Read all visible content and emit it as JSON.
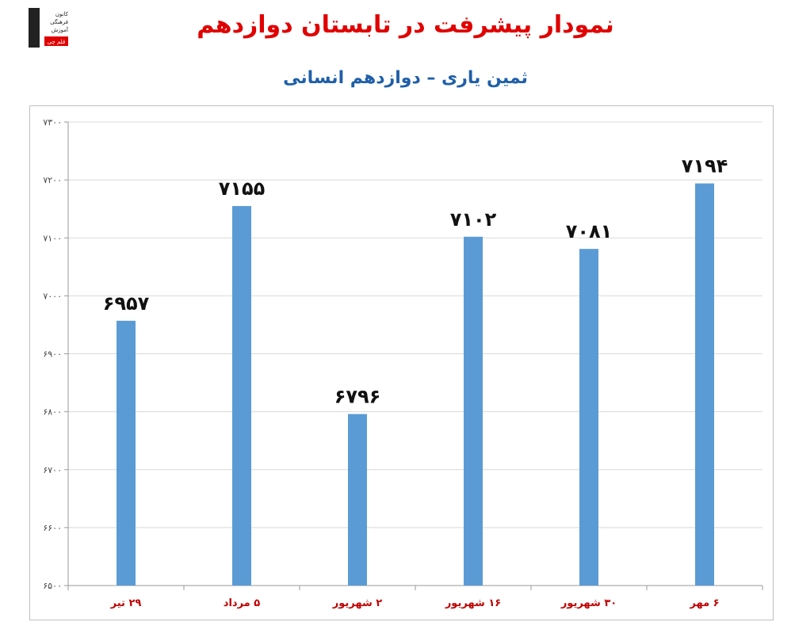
{
  "logo": {
    "lines": [
      "کانون",
      "فرهنگی",
      "آموزش"
    ],
    "badge": "قلم چی"
  },
  "chart_data": {
    "type": "bar",
    "title": "نمودار پیشرفت در تابستان دوازدهم",
    "subtitle": "ثمین یاری – دوازدهم انسانی",
    "categories": [
      "۲۹ تیر",
      "۵ مرداد",
      "۲ شهریور",
      "۱۶ شهریور",
      "۳۰ شهریور",
      "۶ مهر"
    ],
    "values": [
      6957,
      7155,
      6796,
      7102,
      7081,
      7194
    ],
    "data_labels": [
      "۶۹۵۷",
      "۷۱۵۵",
      "۶۷۹۶",
      "۷۱۰۲",
      "۷۰۸۱",
      "۷۱۹۴"
    ],
    "y_ticks": [
      6500,
      6600,
      6700,
      6800,
      6900,
      7000,
      7100,
      7200,
      7300
    ],
    "y_tick_labels": [
      "۶۵۰۰",
      "۶۶۰۰",
      "۶۷۰۰",
      "۶۸۰۰",
      "۶۹۰۰",
      "۷۰۰۰",
      "۷۱۰۰",
      "۷۲۰۰",
      "۷۳۰۰"
    ],
    "ylim": [
      6500,
      7300
    ],
    "grid": true,
    "bar_color": "#5b9bd5",
    "category_label_color": "#c00000",
    "title_color": "#e00000",
    "subtitle_color": "#1f5fa8"
  }
}
